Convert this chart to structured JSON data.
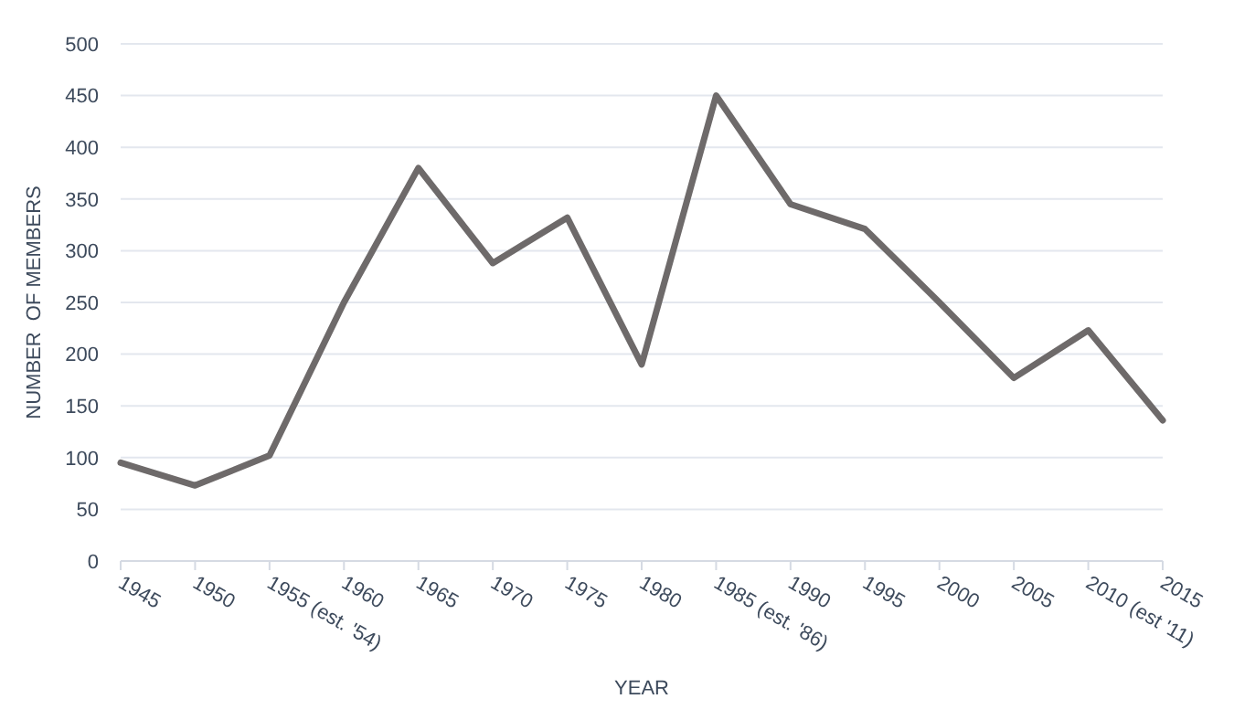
{
  "chart_data": {
    "type": "line",
    "xlabel": "YEAR",
    "ylabel": "NUMBER  OF MEMBERS",
    "categories": [
      "1945",
      "1950",
      "1955 (est. '54)",
      "1960",
      "1965",
      "1970",
      "1975",
      "1980",
      "1985 (est. '86)",
      "1990",
      "1995",
      "2000",
      "2005",
      "2010 (est '11)",
      "2015"
    ],
    "series": [
      {
        "color": "#6e6a6a",
        "values": [
          95,
          73,
          102,
          250,
          380,
          288,
          332,
          190,
          450,
          345,
          321,
          250,
          177,
          223,
          136
        ]
      }
    ],
    "ylim": [
      0,
      500
    ],
    "yticks": [
      0,
      50,
      100,
      150,
      200,
      250,
      300,
      350,
      400,
      450,
      500
    ],
    "grid": "y",
    "marker": "none",
    "line_style": "solid"
  }
}
